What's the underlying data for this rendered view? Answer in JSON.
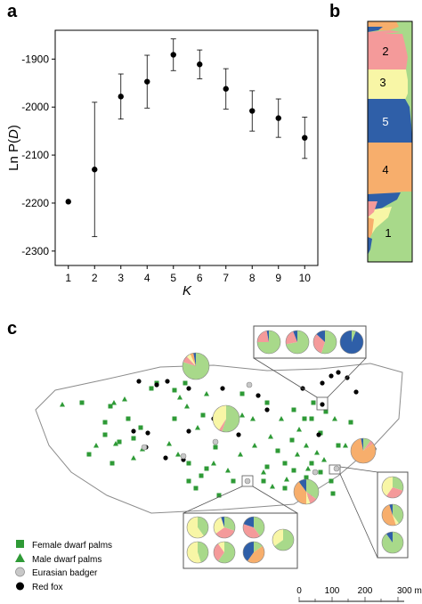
{
  "panels": {
    "a": "a",
    "b": "b",
    "c": "c"
  },
  "chart_data": {
    "type": "scatter",
    "xlabel": "K",
    "ylabel_main": "Ln P(",
    "ylabel_italic": "D",
    "ylabel_close": ")",
    "xlim": [
      0.5,
      10.5
    ],
    "ylim": [
      -2330,
      -1840
    ],
    "x_ticks": [
      "1",
      "2",
      "3",
      "4",
      "5",
      "6",
      "7",
      "8",
      "9",
      "10"
    ],
    "y_ticks": [
      "-1900",
      "-2000",
      "-2100",
      "-2200",
      "-2300"
    ],
    "y_tick_values": [
      -1900,
      -2000,
      -2100,
      -2200,
      -2300
    ],
    "points": [
      {
        "x": 1,
        "y": -2197,
        "err": 0
      },
      {
        "x": 2,
        "y": -2130,
        "err": 140
      },
      {
        "x": 3,
        "y": -1978,
        "err": 47
      },
      {
        "x": 4,
        "y": -1947,
        "err": 55
      },
      {
        "x": 5,
        "y": -1891,
        "err": 33
      },
      {
        "x": 6,
        "y": -1911,
        "err": 30
      },
      {
        "x": 7,
        "y": -1962,
        "err": 42
      },
      {
        "x": 8,
        "y": -2008,
        "err": 42
      },
      {
        "x": 9,
        "y": -2023,
        "err": 40
      },
      {
        "x": 10,
        "y": -2064,
        "err": 43
      }
    ]
  },
  "structure": {
    "cluster_labels": [
      "1",
      "2",
      "3",
      "4",
      "5"
    ],
    "colors": {
      "1": "#a8d98a",
      "2": "#f49a9a",
      "3": "#f8f6a6",
      "4": "#f7ae6c",
      "5": "#2f5fa8"
    }
  },
  "legend": {
    "female": "Female dwarf palms",
    "male": "Male dwarf palms",
    "badger": "Eurasian badger",
    "fox": "Red fox"
  },
  "scale_bar": {
    "ticks": [
      "0",
      "100",
      "200",
      "300 m"
    ]
  },
  "colors": {
    "palm_green": "#2e9a36",
    "badger_grey": "#c8c8c8",
    "fox_black": "#000000"
  }
}
